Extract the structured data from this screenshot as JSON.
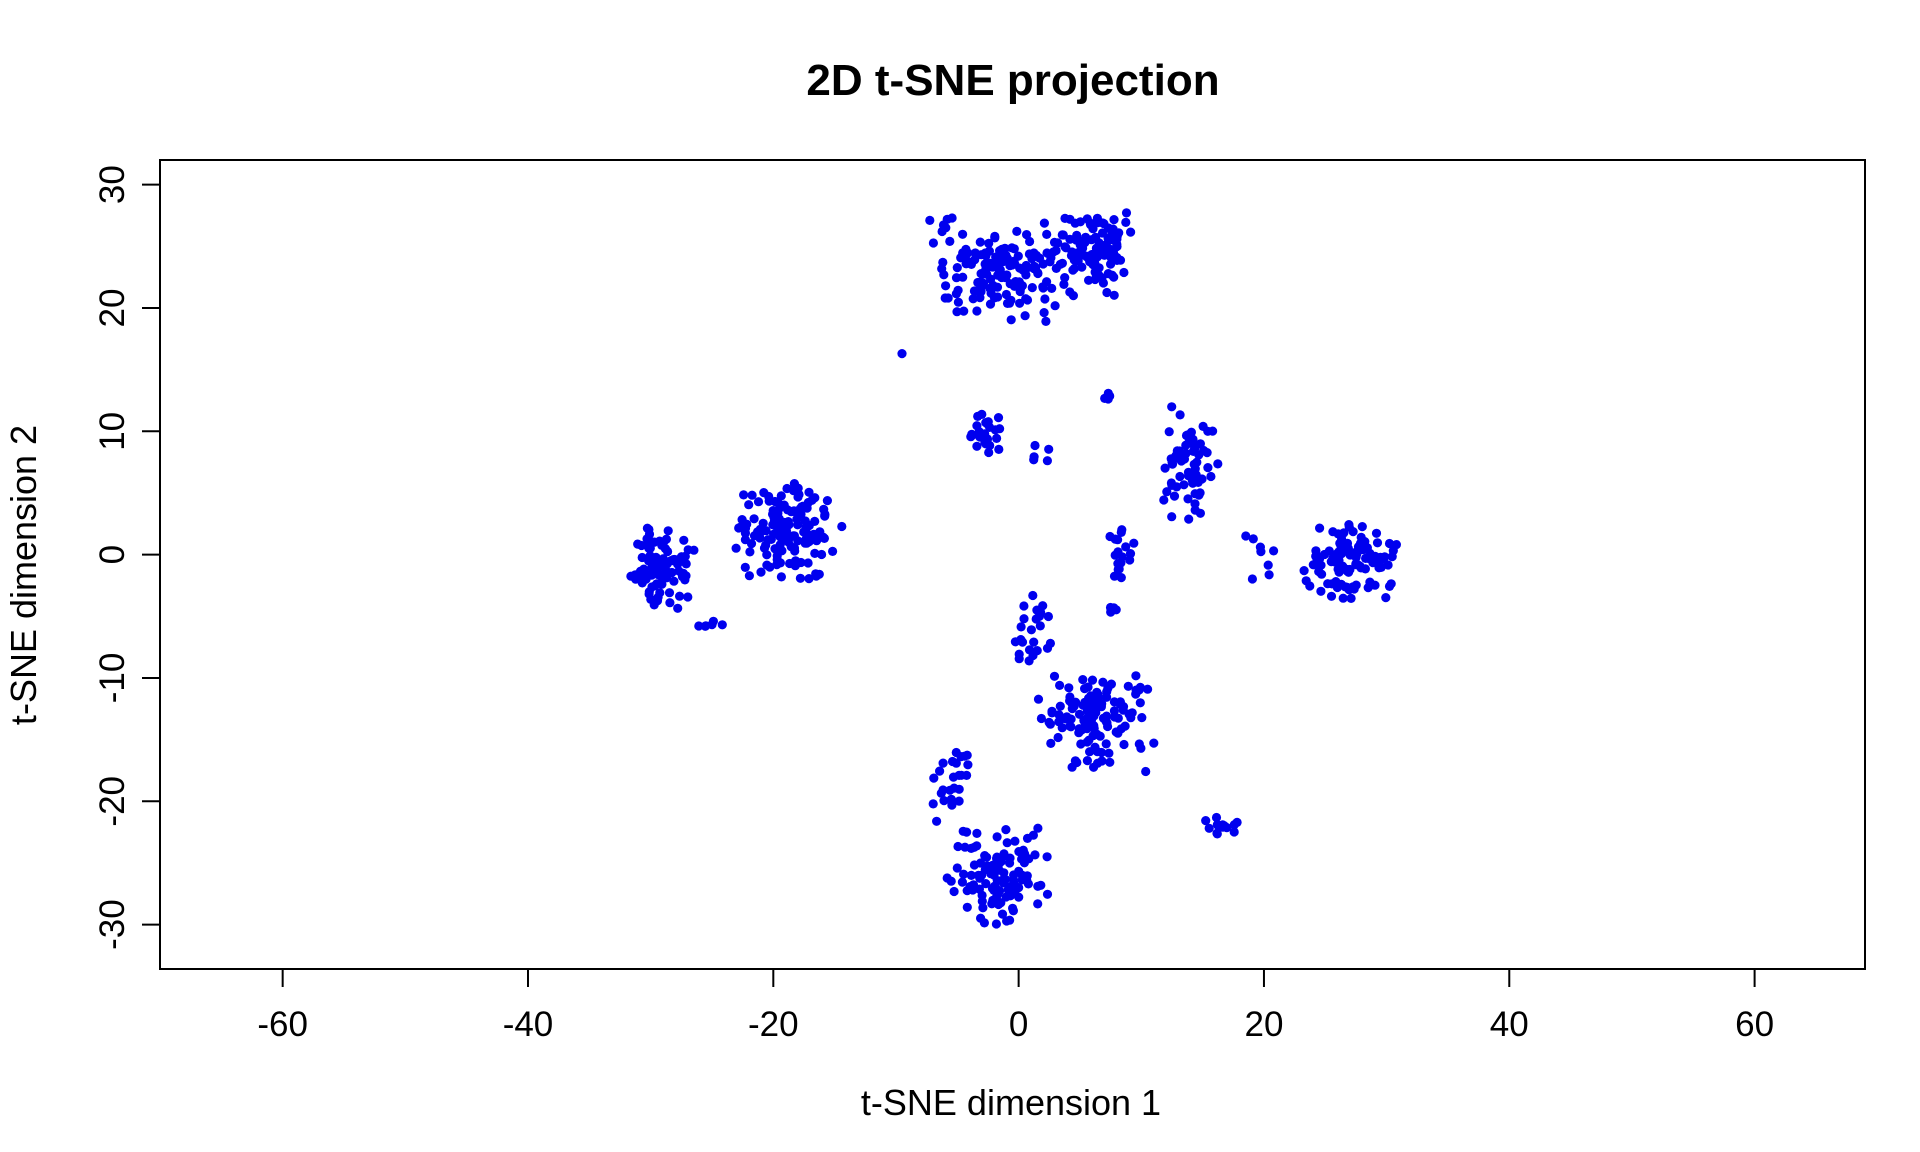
{
  "chart_data": {
    "type": "scatter",
    "title": "2D t-SNE projection",
    "xlabel": "t-SNE dimension 1",
    "ylabel": "t-SNE dimension 2",
    "xlim": [
      -70,
      69
    ],
    "ylim": [
      -33.6,
      32
    ],
    "xticks": [
      -60,
      -40,
      -20,
      0,
      20,
      40,
      60
    ],
    "yticks": [
      -30,
      -20,
      -10,
      0,
      10,
      20,
      30
    ],
    "xtick_labels": [
      "-60",
      "-40",
      "-20",
      "0",
      "20",
      "40",
      "60"
    ],
    "ytick_labels": [
      "-30",
      "-20",
      "-10",
      "0",
      "10",
      "20",
      "30"
    ],
    "grid": false,
    "legend": "none",
    "point_color": "#0000ee",
    "clusters": [
      {
        "center": [
          -29,
          -1
        ],
        "spread": [
          2.2,
          2.6
        ],
        "count": 95
      },
      {
        "center": [
          -19,
          1.8
        ],
        "spread": [
          3.6,
          3.0
        ],
        "count": 140
      },
      {
        "center": [
          -25,
          -5.7
        ],
        "spread": [
          1.0,
          0.3
        ],
        "count": 6
      },
      {
        "center": [
          -2,
          23
        ],
        "spread": [
          4.0,
          3.2
        ],
        "count": 140
      },
      {
        "center": [
          6,
          24.5
        ],
        "spread": [
          3.0,
          2.6
        ],
        "count": 110
      },
      {
        "center": [
          -3,
          9.5
        ],
        "spread": [
          1.2,
          1.6
        ],
        "count": 25
      },
      {
        "center": [
          2,
          8.5
        ],
        "spread": [
          1.5,
          1.0
        ],
        "count": 5
      },
      {
        "center": [
          7.5,
          12.8
        ],
        "spread": [
          0.5,
          0.6
        ],
        "count": 4
      },
      {
        "center": [
          14,
          7.5
        ],
        "spread": [
          1.8,
          3.5
        ],
        "count": 65
      },
      {
        "center": [
          27,
          -0.5
        ],
        "spread": [
          2.8,
          2.3
        ],
        "count": 110
      },
      {
        "center": [
          19.5,
          -0.5
        ],
        "spread": [
          1.2,
          2.0
        ],
        "count": 8
      },
      {
        "center": [
          8.5,
          0
        ],
        "spread": [
          0.9,
          2.0
        ],
        "count": 18
      },
      {
        "center": [
          7.5,
          -4.2
        ],
        "spread": [
          0.5,
          0.6
        ],
        "count": 4
      },
      {
        "center": [
          1,
          -6.5
        ],
        "spread": [
          1.3,
          2.5
        ],
        "count": 25
      },
      {
        "center": [
          6,
          -13.5
        ],
        "spread": [
          3.8,
          3.0
        ],
        "count": 130
      },
      {
        "center": [
          -1.5,
          -26
        ],
        "spread": [
          3.3,
          3.0
        ],
        "count": 110
      },
      {
        "center": [
          -5.5,
          -18.5
        ],
        "spread": [
          1.2,
          2.5
        ],
        "count": 25
      },
      {
        "center": [
          16.5,
          -22
        ],
        "spread": [
          1.2,
          0.6
        ],
        "count": 14
      },
      {
        "center": [
          -9.5,
          16.2
        ],
        "spread": [
          0.1,
          0.1
        ],
        "count": 1
      }
    ]
  }
}
